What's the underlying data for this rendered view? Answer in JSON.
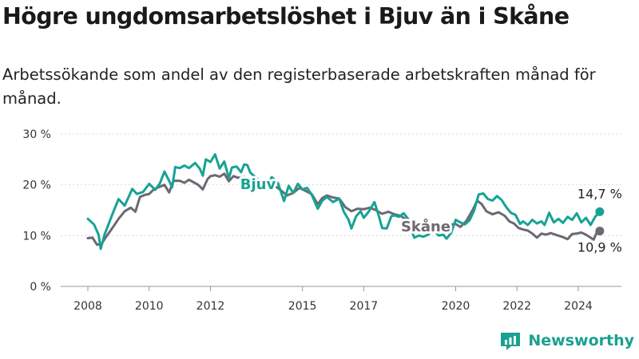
{
  "header": {
    "title": "Högre ungdomsarbetslöshet i Bjuv än i Skåne",
    "subtitle": "Arbetssökande som andel av den registerbaserade arbetskraften månad för månad."
  },
  "brand": {
    "name": "Newsworthy",
    "color": "#1aa090"
  },
  "chart_data": {
    "type": "line",
    "title": "Högre ungdomsarbetslöshet i Bjuv än i Skåne",
    "xlabel": "",
    "ylabel": "",
    "xlim": [
      2007.4,
      2025.4
    ],
    "ylim": [
      0,
      30
    ],
    "y_ticks": [
      {
        "value": 0,
        "label": "0 %"
      },
      {
        "value": 10,
        "label": "10 %"
      },
      {
        "value": 20,
        "label": "20 %"
      },
      {
        "value": 30,
        "label": "30 %"
      }
    ],
    "x_ticks": [
      {
        "value": 2008,
        "label": "2008"
      },
      {
        "value": 2010,
        "label": "2010"
      },
      {
        "value": 2012,
        "label": "2012"
      },
      {
        "value": 2015,
        "label": "2015"
      },
      {
        "value": 2017,
        "label": "2017"
      },
      {
        "value": 2020,
        "label": "2020"
      },
      {
        "value": 2022,
        "label": "2022"
      },
      {
        "value": 2024,
        "label": "2024"
      }
    ],
    "grid": true,
    "series": [
      {
        "name": "Bjuv",
        "color": "#16a394",
        "label": "Bjuv",
        "end_label": "14,7 %",
        "points": [
          [
            2008.0,
            13.3
          ],
          [
            2008.2,
            12.2
          ],
          [
            2008.35,
            10.2
          ],
          [
            2008.42,
            7.4
          ],
          [
            2008.55,
            10.3
          ],
          [
            2008.8,
            14.2
          ],
          [
            2009.0,
            17.2
          ],
          [
            2009.2,
            15.9
          ],
          [
            2009.45,
            19.2
          ],
          [
            2009.6,
            18.2
          ],
          [
            2009.8,
            18.6
          ],
          [
            2010.0,
            20.2
          ],
          [
            2010.2,
            19.0
          ],
          [
            2010.35,
            20.3
          ],
          [
            2010.5,
            22.6
          ],
          [
            2010.65,
            20.8
          ],
          [
            2010.75,
            19.5
          ],
          [
            2010.85,
            23.5
          ],
          [
            2011.0,
            23.3
          ],
          [
            2011.15,
            23.8
          ],
          [
            2011.3,
            23.3
          ],
          [
            2011.5,
            24.3
          ],
          [
            2011.65,
            23.2
          ],
          [
            2011.75,
            21.8
          ],
          [
            2011.85,
            25.0
          ],
          [
            2012.0,
            24.5
          ],
          [
            2012.15,
            26.0
          ],
          [
            2012.3,
            23.2
          ],
          [
            2012.45,
            24.6
          ],
          [
            2012.6,
            21.3
          ],
          [
            2012.7,
            23.4
          ],
          [
            2012.85,
            23.6
          ],
          [
            2013.0,
            22.5
          ],
          [
            2013.1,
            24.0
          ],
          [
            2013.2,
            23.9
          ],
          [
            2013.3,
            22.4
          ],
          [
            2013.45,
            21.6
          ],
          [
            2013.55,
            21.0
          ],
          [
            2013.7,
            20.6
          ],
          [
            2013.85,
            20.2
          ],
          [
            2014.0,
            21.5
          ],
          [
            2014.2,
            20.4
          ],
          [
            2014.4,
            16.8
          ],
          [
            2014.55,
            19.8
          ],
          [
            2014.7,
            18.4
          ],
          [
            2014.85,
            20.2
          ],
          [
            2015.0,
            19.1
          ],
          [
            2015.15,
            19.4
          ],
          [
            2015.3,
            18.1
          ],
          [
            2015.5,
            15.3
          ],
          [
            2015.65,
            16.9
          ],
          [
            2015.8,
            17.6
          ],
          [
            2016.0,
            16.6
          ],
          [
            2016.2,
            17.3
          ],
          [
            2016.35,
            14.7
          ],
          [
            2016.5,
            13.2
          ],
          [
            2016.6,
            11.4
          ],
          [
            2016.75,
            13.8
          ],
          [
            2016.9,
            14.8
          ],
          [
            2017.0,
            13.5
          ],
          [
            2017.15,
            14.6
          ],
          [
            2017.35,
            16.6
          ],
          [
            2017.5,
            13.7
          ],
          [
            2017.6,
            11.5
          ],
          [
            2017.75,
            11.4
          ],
          [
            2017.9,
            13.8
          ],
          [
            2018.0,
            14.0
          ],
          [
            2018.15,
            13.7
          ],
          [
            2018.3,
            14.4
          ],
          [
            2018.45,
            13.3
          ],
          [
            2018.55,
            11.1
          ],
          [
            2018.65,
            9.6
          ],
          [
            2018.8,
            10.0
          ],
          [
            2018.95,
            9.8
          ],
          [
            2019.1,
            10.2
          ],
          [
            2019.25,
            11.2
          ],
          [
            2019.45,
            10.0
          ],
          [
            2019.6,
            10.2
          ],
          [
            2019.7,
            9.4
          ],
          [
            2019.85,
            10.5
          ],
          [
            2020.0,
            13.1
          ],
          [
            2020.15,
            12.6
          ],
          [
            2020.3,
            12.2
          ],
          [
            2020.45,
            13.0
          ],
          [
            2020.6,
            14.9
          ],
          [
            2020.75,
            18.1
          ],
          [
            2020.9,
            18.3
          ],
          [
            2021.05,
            17.2
          ],
          [
            2021.2,
            16.9
          ],
          [
            2021.35,
            17.8
          ],
          [
            2021.5,
            17.0
          ],
          [
            2021.65,
            15.6
          ],
          [
            2021.8,
            14.5
          ],
          [
            2021.95,
            14.1
          ],
          [
            2022.1,
            12.3
          ],
          [
            2022.2,
            12.8
          ],
          [
            2022.35,
            12.1
          ],
          [
            2022.5,
            13.1
          ],
          [
            2022.65,
            12.4
          ],
          [
            2022.8,
            12.8
          ],
          [
            2022.9,
            12.1
          ],
          [
            2023.05,
            14.5
          ],
          [
            2023.2,
            12.6
          ],
          [
            2023.35,
            13.3
          ],
          [
            2023.5,
            12.5
          ],
          [
            2023.65,
            13.7
          ],
          [
            2023.8,
            13.1
          ],
          [
            2023.95,
            14.4
          ],
          [
            2024.1,
            12.6
          ],
          [
            2024.25,
            13.5
          ],
          [
            2024.4,
            12.1
          ],
          [
            2024.55,
            13.7
          ],
          [
            2024.7,
            14.7
          ]
        ]
      },
      {
        "name": "Skåne",
        "color": "#6d6872",
        "label": "Skåne",
        "end_label": "10,9 %",
        "points": [
          [
            2008.0,
            9.5
          ],
          [
            2008.15,
            9.6
          ],
          [
            2008.3,
            8.2
          ],
          [
            2008.45,
            8.4
          ],
          [
            2008.6,
            9.8
          ],
          [
            2008.8,
            11.5
          ],
          [
            2009.0,
            13.3
          ],
          [
            2009.2,
            14.8
          ],
          [
            2009.4,
            15.5
          ],
          [
            2009.55,
            14.7
          ],
          [
            2009.7,
            17.6
          ],
          [
            2009.85,
            18.0
          ],
          [
            2010.0,
            18.2
          ],
          [
            2010.15,
            19.1
          ],
          [
            2010.3,
            19.5
          ],
          [
            2010.5,
            20.0
          ],
          [
            2010.65,
            18.5
          ],
          [
            2010.8,
            20.8
          ],
          [
            2011.0,
            20.8
          ],
          [
            2011.15,
            20.4
          ],
          [
            2011.3,
            21.0
          ],
          [
            2011.45,
            20.5
          ],
          [
            2011.6,
            20.0
          ],
          [
            2011.75,
            19.1
          ],
          [
            2011.9,
            21.1
          ],
          [
            2012.0,
            21.7
          ],
          [
            2012.15,
            21.9
          ],
          [
            2012.3,
            21.6
          ],
          [
            2012.45,
            22.2
          ],
          [
            2012.6,
            20.7
          ],
          [
            2012.75,
            21.7
          ],
          [
            2012.9,
            21.4
          ],
          [
            2013.1,
            21.5
          ],
          [
            2013.3,
            21.1
          ],
          [
            2013.5,
            20.9
          ],
          [
            2013.7,
            20.8
          ],
          [
            2013.9,
            20.4
          ],
          [
            2014.1,
            19.8
          ],
          [
            2014.3,
            18.9
          ],
          [
            2014.5,
            17.9
          ],
          [
            2014.7,
            18.4
          ],
          [
            2014.9,
            19.4
          ],
          [
            2015.1,
            18.8
          ],
          [
            2015.3,
            18.2
          ],
          [
            2015.5,
            16.2
          ],
          [
            2015.65,
            17.4
          ],
          [
            2015.8,
            17.9
          ],
          [
            2016.0,
            17.5
          ],
          [
            2016.2,
            17.3
          ],
          [
            2016.4,
            15.6
          ],
          [
            2016.6,
            14.8
          ],
          [
            2016.8,
            15.3
          ],
          [
            2017.0,
            15.2
          ],
          [
            2017.2,
            15.5
          ],
          [
            2017.4,
            15.0
          ],
          [
            2017.6,
            14.3
          ],
          [
            2017.8,
            14.7
          ],
          [
            2018.0,
            14.2
          ],
          [
            2018.2,
            13.9
          ],
          [
            2018.4,
            13.1
          ],
          [
            2018.6,
            12.5
          ],
          [
            2018.8,
            11.8
          ],
          [
            2019.0,
            11.4
          ],
          [
            2019.2,
            11.9
          ],
          [
            2019.4,
            11.6
          ],
          [
            2019.6,
            11.8
          ],
          [
            2019.8,
            12.1
          ],
          [
            2020.0,
            12.3
          ],
          [
            2020.15,
            11.7
          ],
          [
            2020.35,
            12.9
          ],
          [
            2020.55,
            15.0
          ],
          [
            2020.7,
            16.9
          ],
          [
            2020.85,
            16.2
          ],
          [
            2021.0,
            14.8
          ],
          [
            2021.2,
            14.2
          ],
          [
            2021.4,
            14.6
          ],
          [
            2021.6,
            13.9
          ],
          [
            2021.75,
            12.8
          ],
          [
            2021.9,
            12.4
          ],
          [
            2022.05,
            11.5
          ],
          [
            2022.2,
            11.2
          ],
          [
            2022.35,
            11.0
          ],
          [
            2022.5,
            10.4
          ],
          [
            2022.65,
            9.6
          ],
          [
            2022.8,
            10.4
          ],
          [
            2022.95,
            10.2
          ],
          [
            2023.1,
            10.5
          ],
          [
            2023.3,
            10.1
          ],
          [
            2023.5,
            9.7
          ],
          [
            2023.65,
            9.3
          ],
          [
            2023.8,
            10.3
          ],
          [
            2023.95,
            10.4
          ],
          [
            2024.1,
            10.6
          ],
          [
            2024.25,
            10.2
          ],
          [
            2024.4,
            9.6
          ],
          [
            2024.5,
            9.2
          ],
          [
            2024.6,
            10.6
          ],
          [
            2024.7,
            10.9
          ]
        ]
      }
    ]
  }
}
